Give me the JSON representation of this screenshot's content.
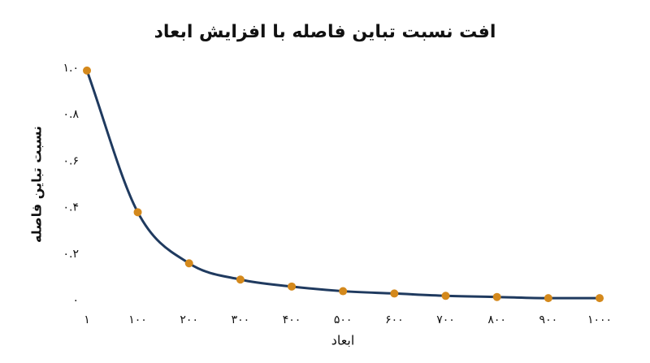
{
  "chart_data": {
    "type": "line",
    "title": "افت نسبت تباین فاصله با افزایش ابعاد",
    "x_label": "ابعاد",
    "y_label": "نسبت تباین فاصله",
    "x": [
      1,
      100,
      200,
      300,
      400,
      500,
      600,
      700,
      800,
      900,
      1000
    ],
    "series": [
      {
        "color": "#1f3a5f",
        "marker_color": "#d4891c",
        "values": [
          0.99,
          0.38,
          0.16,
          0.09,
          0.06,
          0.04,
          0.03,
          0.02,
          0.015,
          0.01,
          0.01
        ]
      }
    ],
    "xlim": [
      1,
      1000
    ],
    "ylim": [
      0,
      1
    ],
    "xticks": [
      {
        "value": 1,
        "label": "۱"
      },
      {
        "value": 100,
        "label": "۱۰۰"
      },
      {
        "value": 200,
        "label": "۲۰۰"
      },
      {
        "value": 300,
        "label": "۳۰۰"
      },
      {
        "value": 400,
        "label": "۴۰۰"
      },
      {
        "value": 500,
        "label": "۵۰۰"
      },
      {
        "value": 600,
        "label": "۶۰۰"
      },
      {
        "value": 700,
        "label": "۷۰۰"
      },
      {
        "value": 800,
        "label": "۸۰۰"
      },
      {
        "value": 900,
        "label": "۹۰۰"
      },
      {
        "value": 1000,
        "label": "۱۰۰۰"
      }
    ],
    "yticks": [
      {
        "value": 0,
        "label": "۰"
      },
      {
        "value": 0.2,
        "label": "۰.۲"
      },
      {
        "value": 0.4,
        "label": "۰.۴"
      },
      {
        "value": 0.6,
        "label": "۰.۶"
      },
      {
        "value": 0.8,
        "label": "۰.۸"
      },
      {
        "value": 1,
        "label": "۱.۰"
      }
    ],
    "grid": false
  }
}
